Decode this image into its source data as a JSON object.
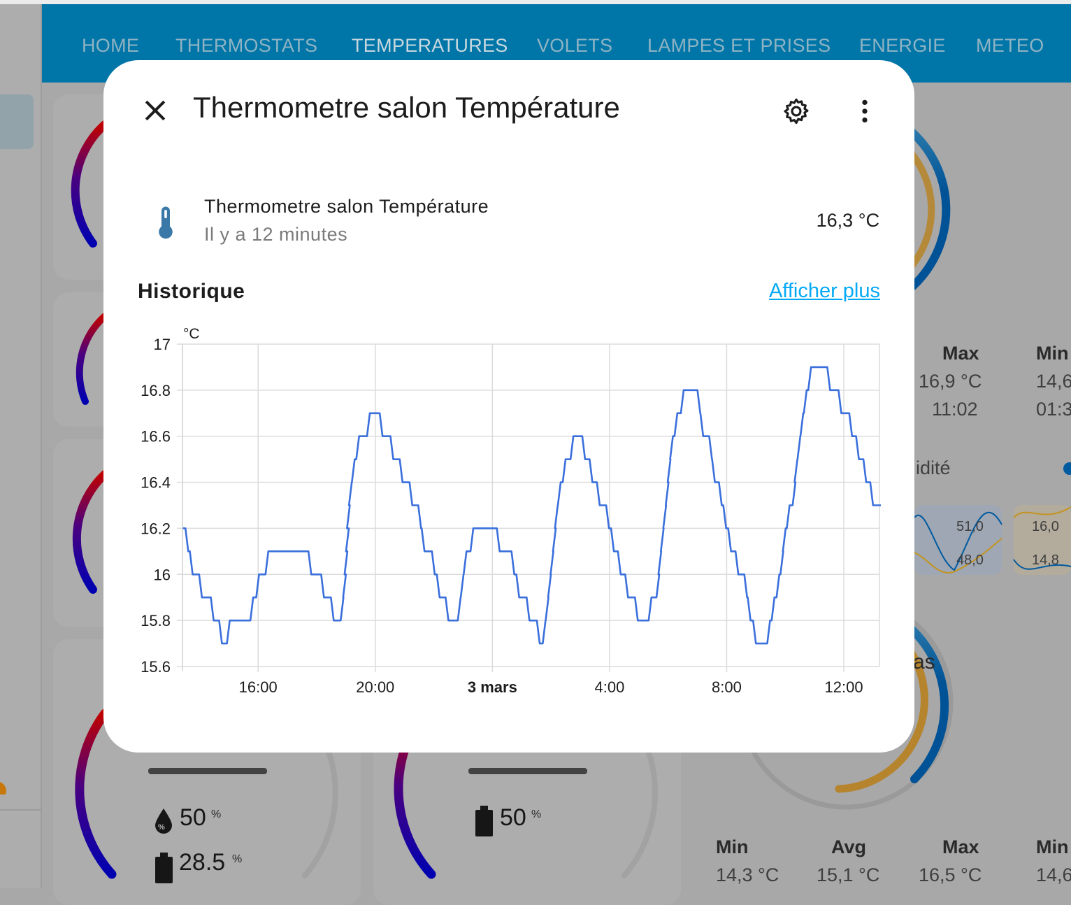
{
  "nav": {
    "tabs": [
      {
        "label": "HOME",
        "active": false
      },
      {
        "label": "THERMOSTATS",
        "active": false
      },
      {
        "label": "TEMPERATURES",
        "active": true
      },
      {
        "label": "VOLETS",
        "active": false
      },
      {
        "label": "LAMPES ET PRISES",
        "active": false
      },
      {
        "label": "ENERGIE",
        "active": false
      },
      {
        "label": "METEO",
        "active": false
      }
    ],
    "color": "#0076a8"
  },
  "background": {
    "stats_top": {
      "max_label": "Max",
      "max_value": "16,9 °C",
      "max_time": "11:02",
      "min_label": "Min",
      "min_value": "14,6",
      "min_time": "01:3"
    },
    "humidity_label": "idité",
    "mini_chart_1": {
      "high": "51,0",
      "low": "48,0"
    },
    "mini_chart_2": {
      "high": "16,0",
      "low": "14,8"
    },
    "card_partial_label": "as",
    "stats_bottom": {
      "min_label": "Min",
      "min_value": "14,3 °C",
      "avg_label": "Avg",
      "avg_value": "15,1 °C",
      "max_label": "Max",
      "max_value": "16,5 °C",
      "min2_label": "Min",
      "min2_value": "14,6"
    },
    "card_a": {
      "humidity": "50",
      "humidity_unit": "%",
      "battery": "28.5",
      "battery_unit": "%"
    },
    "card_b": {
      "battery": "50",
      "battery_unit": "%"
    }
  },
  "dialog": {
    "title": "Thermometre salon Température",
    "entity": {
      "name": "Thermometre salon Température",
      "last_changed": "Il y a 12 minutes",
      "state": "16,3 °C",
      "icon": "thermometer-icon",
      "icon_color": "#3a78a8"
    },
    "history_title": "Historique",
    "show_more": "Afficher plus"
  },
  "chart_data": {
    "type": "line",
    "step": true,
    "ylabel": "°C",
    "ylim": [
      15.6,
      17
    ],
    "yticks": [
      "17",
      "16.8",
      "16.6",
      "16.4",
      "16.2",
      "16",
      "15.8",
      "15.6"
    ],
    "x_range": [
      "13:25",
      "13:13"
    ],
    "xticks": [
      {
        "label": "16:00",
        "time": "16:00",
        "bold": false
      },
      {
        "label": "20:00",
        "time": "20:00",
        "bold": false
      },
      {
        "label": "3 mars",
        "time": "00:00",
        "bold": true
      },
      {
        "label": "4:00",
        "time": "04:00",
        "bold": false
      },
      {
        "label": "8:00",
        "time": "08:00",
        "bold": false
      },
      {
        "label": "12:00",
        "time": "12:00",
        "bold": false
      }
    ],
    "grid": true,
    "line_color": "#3a6fdc",
    "points": [
      [
        "13:26",
        16.2
      ],
      [
        "13:34",
        16.1
      ],
      [
        "13:43",
        16.0
      ],
      [
        "14:02",
        15.9
      ],
      [
        "14:26",
        15.8
      ],
      [
        "14:43",
        15.7
      ],
      [
        "14:59",
        15.8
      ],
      [
        "15:47",
        15.9
      ],
      [
        "15:59",
        16.0
      ],
      [
        "16:18",
        16.1
      ],
      [
        "17:46",
        16.0
      ],
      [
        "18:12",
        15.9
      ],
      [
        "18:32",
        15.8
      ],
      [
        "18:52",
        15.9
      ],
      [
        "18:57",
        16.0
      ],
      [
        "19:00",
        16.1
      ],
      [
        "19:03",
        16.2
      ],
      [
        "19:05",
        16.3
      ],
      [
        "19:09",
        16.4
      ],
      [
        "19:15",
        16.5
      ],
      [
        "19:24",
        16.6
      ],
      [
        "19:46",
        16.7
      ],
      [
        "20:12",
        16.6
      ],
      [
        "20:34",
        16.5
      ],
      [
        "20:53",
        16.4
      ],
      [
        "21:13",
        16.3
      ],
      [
        "21:31",
        16.2
      ],
      [
        "21:38",
        16.1
      ],
      [
        "21:59",
        16.0
      ],
      [
        "22:09",
        15.9
      ],
      [
        "22:27",
        15.8
      ],
      [
        "22:52",
        15.9
      ],
      [
        "22:58",
        16.0
      ],
      [
        "23:04",
        16.1
      ],
      [
        "23:18",
        16.2
      ],
      [
        "00:12",
        16.1
      ],
      [
        "00:42",
        16.0
      ],
      [
        "00:52",
        15.9
      ],
      [
        "01:13",
        15.8
      ],
      [
        "01:34",
        15.7
      ],
      [
        "01:46",
        15.8
      ],
      [
        "01:52",
        15.9
      ],
      [
        "01:57",
        16.0
      ],
      [
        "02:02",
        16.1
      ],
      [
        "02:07",
        16.2
      ],
      [
        "02:11",
        16.3
      ],
      [
        "02:17",
        16.4
      ],
      [
        "02:27",
        16.5
      ],
      [
        "02:43",
        16.6
      ],
      [
        "03:07",
        16.5
      ],
      [
        "03:22",
        16.4
      ],
      [
        "03:37",
        16.3
      ],
      [
        "03:56",
        16.2
      ],
      [
        "04:06",
        16.1
      ],
      [
        "04:20",
        16.0
      ],
      [
        "04:35",
        15.9
      ],
      [
        "04:55",
        15.8
      ],
      [
        "05:23",
        15.9
      ],
      [
        "05:39",
        16.0
      ],
      [
        "05:43",
        16.1
      ],
      [
        "05:48",
        16.2
      ],
      [
        "05:53",
        16.3
      ],
      [
        "05:58",
        16.4
      ],
      [
        "06:02",
        16.5
      ],
      [
        "06:07",
        16.6
      ],
      [
        "06:16",
        16.7
      ],
      [
        "06:29",
        16.8
      ],
      [
        "07:03",
        16.7
      ],
      [
        "07:09",
        16.6
      ],
      [
        "07:27",
        16.5
      ],
      [
        "07:33",
        16.4
      ],
      [
        "07:47",
        16.3
      ],
      [
        "07:56",
        16.2
      ],
      [
        "08:06",
        16.1
      ],
      [
        "08:21",
        16.0
      ],
      [
        "08:39",
        15.9
      ],
      [
        "08:46",
        15.8
      ],
      [
        "08:57",
        15.7
      ],
      [
        "09:26",
        15.8
      ],
      [
        "09:35",
        15.9
      ],
      [
        "09:45",
        16.0
      ],
      [
        "09:53",
        16.1
      ],
      [
        "09:58",
        16.2
      ],
      [
        "10:06",
        16.3
      ],
      [
        "10:18",
        16.4
      ],
      [
        "10:22",
        16.5
      ],
      [
        "10:28",
        16.6
      ],
      [
        "10:34",
        16.7
      ],
      [
        "10:41",
        16.8
      ],
      [
        "10:50",
        16.9
      ],
      [
        "11:29",
        16.8
      ],
      [
        "11:52",
        16.7
      ],
      [
        "12:14",
        16.6
      ],
      [
        "12:28",
        16.5
      ],
      [
        "12:43",
        16.4
      ],
      [
        "12:57",
        16.3
      ],
      [
        "13:13",
        16.3
      ]
    ]
  }
}
